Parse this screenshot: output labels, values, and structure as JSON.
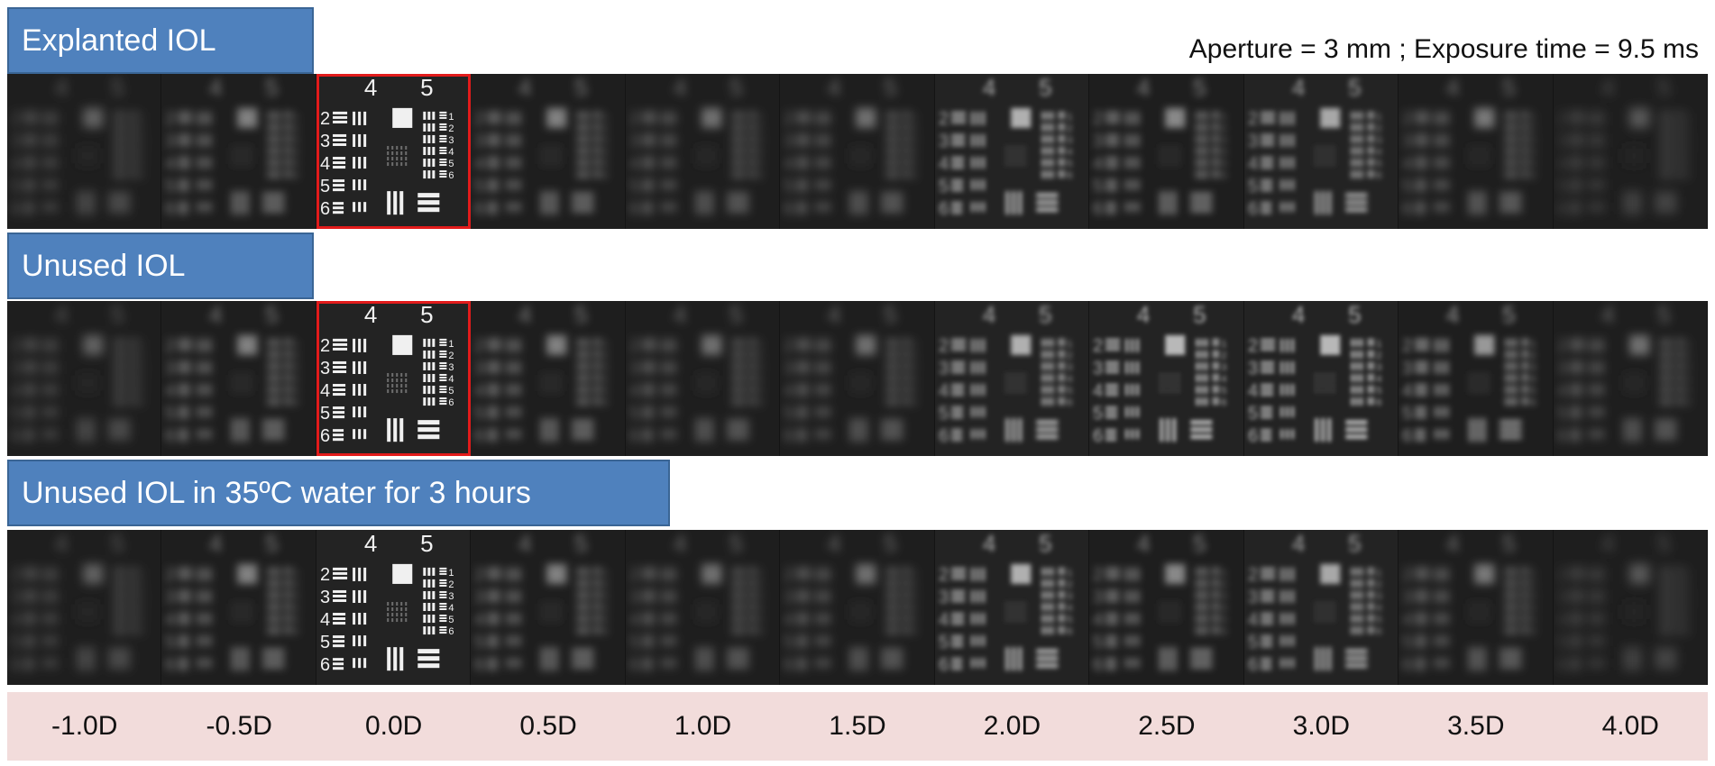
{
  "caption": "Aperture = 3 mm ; Exposure time = 9.5 ms",
  "rows": [
    {
      "label": "Explanted IOL",
      "highlight_index": 2
    },
    {
      "label": "Unused IOL",
      "highlight_index": 2
    },
    {
      "label": "Unused IOL in 35ºC water for 3 hours",
      "highlight_index": null
    }
  ],
  "target": {
    "group_numbers": [
      "4",
      "5"
    ],
    "element_numbers": [
      "2",
      "3",
      "4",
      "5",
      "6"
    ],
    "right_element_numbers": [
      "1",
      "2",
      "3",
      "4",
      "5",
      "6"
    ]
  },
  "defocus": [
    "-1.0D",
    "-0.5D",
    "0.0D",
    "0.5D",
    "1.0D",
    "1.5D",
    "2.0D",
    "2.5D",
    "3.0D",
    "3.5D",
    "4.0D"
  ],
  "sharpness": {
    "Explanted IOL": [
      0.1,
      0.3,
      1.0,
      0.3,
      0.2,
      0.2,
      0.6,
      0.35,
      0.55,
      0.25,
      0.05
    ],
    "Unused IOL": [
      0.1,
      0.3,
      1.0,
      0.3,
      0.2,
      0.2,
      0.6,
      0.65,
      0.65,
      0.45,
      0.2
    ],
    "Unused IOL in 35ºC water for 3 hours": [
      0.1,
      0.3,
      1.0,
      0.3,
      0.2,
      0.2,
      0.6,
      0.35,
      0.55,
      0.25,
      0.05
    ]
  },
  "colors": {
    "label_bg": "#4f81bd",
    "highlight": "#e21b1b",
    "footer_bg": "#f2dcdb"
  }
}
